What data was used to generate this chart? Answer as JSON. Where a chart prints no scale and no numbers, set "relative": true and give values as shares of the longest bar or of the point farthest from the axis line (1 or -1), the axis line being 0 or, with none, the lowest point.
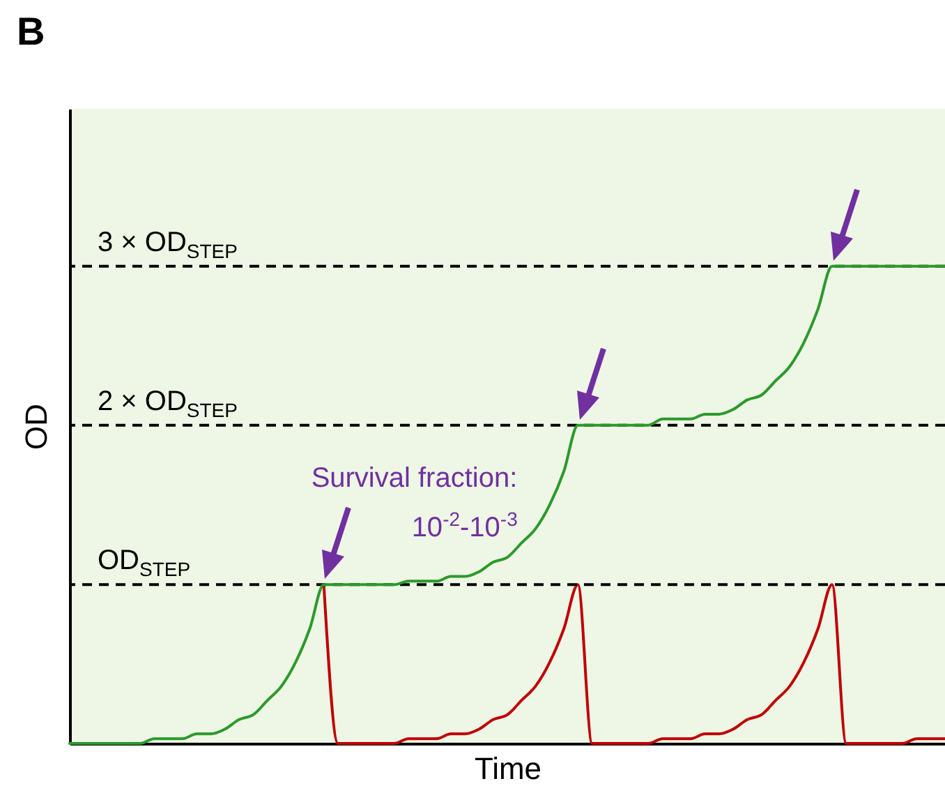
{
  "chart_data": {
    "type": "line",
    "title": "B",
    "xlabel": "Time",
    "ylabel": "OD",
    "relative": true,
    "marker": "none",
    "line_style": "solid",
    "categories": [
      null,
      null,
      null,
      null,
      null,
      null,
      null,
      null,
      null,
      null,
      null,
      null,
      null,
      null,
      null,
      null,
      null,
      null,
      null,
      null,
      null,
      null,
      null,
      null,
      null,
      null,
      null,
      null,
      null,
      null,
      null,
      null,
      null,
      null,
      null,
      null,
      null,
      null,
      null,
      null,
      null,
      null,
      null,
      null,
      null,
      null,
      null,
      null,
      null,
      null,
      null,
      null,
      null,
      null,
      null,
      null,
      null,
      null,
      null,
      null,
      null,
      null,
      null
    ],
    "series": [
      {
        "color": "#c00000",
        "values": [
          null,
          null,
          null,
          null,
          null,
          null,
          null,
          null,
          null,
          null,
          null,
          null,
          null,
          null,
          null,
          null,
          null,
          null,
          0.333,
          0,
          0,
          0,
          0,
          0,
          0.01,
          0.01,
          0.01,
          0.02,
          0.02,
          0.03,
          0.05,
          0.06,
          0.09,
          0.12,
          0.17,
          0.24,
          0.333,
          0,
          0,
          0,
          0,
          0,
          0.01,
          0.01,
          0.01,
          0.02,
          0.02,
          0.03,
          0.05,
          0.06,
          0.09,
          0.12,
          0.17,
          0.24,
          0.333,
          0,
          0,
          0,
          0,
          0,
          0.01,
          0.01,
          0.01
        ]
      },
      {
        "color": "#2a9a2a",
        "values": [
          0,
          0,
          0,
          0,
          0,
          0,
          0.01,
          0.01,
          0.01,
          0.02,
          0.02,
          0.03,
          0.05,
          0.06,
          0.09,
          0.12,
          0.17,
          0.24,
          0.333,
          0.333,
          0.333,
          0.333,
          0.333,
          0.333,
          0.34,
          0.34,
          0.34,
          0.35,
          0.35,
          0.36,
          0.38,
          0.39,
          0.42,
          0.45,
          0.5,
          0.57,
          0.667,
          0.667,
          0.667,
          0.667,
          0.667,
          0.667,
          0.68,
          0.68,
          0.68,
          0.69,
          0.69,
          0.7,
          0.72,
          0.73,
          0.76,
          0.79,
          0.84,
          0.91,
          1,
          1,
          1,
          1,
          1,
          1,
          1,
          1,
          1
        ]
      }
    ],
    "ref_lines": [
      {
        "axis": "y",
        "value": 0.333,
        "label": "OD$_{STEP}$",
        "color": "#000000",
        "line_style": "dashed"
      },
      {
        "axis": "y",
        "value": 0.667,
        "label": "2 × OD$_{STEP}$",
        "color": "#000000",
        "line_style": "dashed"
      },
      {
        "axis": "y",
        "value": 1,
        "label": "3 × OD$_{STEP}$",
        "color": "#000000",
        "line_style": "dashed"
      }
    ],
    "annotations": [
      "Survival fraction:",
      "10$^{-2}$-10$^{-3}$"
    ]
  }
}
